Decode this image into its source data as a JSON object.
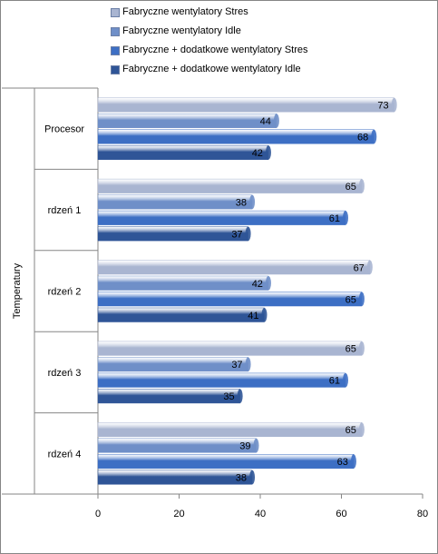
{
  "chart_data": {
    "type": "bar",
    "orientation": "horizontal",
    "categories": [
      "Procesor",
      "rdzeń 1",
      "rdzeń 2",
      "rdzeń 3",
      "rdzeń 4"
    ],
    "series": [
      {
        "name": "Fabryczne  wentylatory Stres",
        "values": [
          73,
          65,
          67,
          65,
          65
        ],
        "color": "#a9b5d1"
      },
      {
        "name": "Fabryczne  wentylatory Idle",
        "values": [
          44,
          38,
          42,
          37,
          39
        ],
        "color": "#6f8fc8"
      },
      {
        "name": "Fabryczne + dodatkowe  wentylatory Stres",
        "values": [
          68,
          61,
          65,
          61,
          63
        ],
        "color": "#3d6fc4"
      },
      {
        "name": "Fabryczne + dodatkowe  wentylatory Idle",
        "values": [
          42,
          37,
          41,
          35,
          38
        ],
        "color": "#2f5597"
      }
    ],
    "ylabel": "Temperatury",
    "xlim": [
      0,
      80
    ],
    "xticks": [
      0,
      20,
      40,
      60,
      80
    ],
    "grid": false,
    "legend_position": "top",
    "data_labels": true
  }
}
